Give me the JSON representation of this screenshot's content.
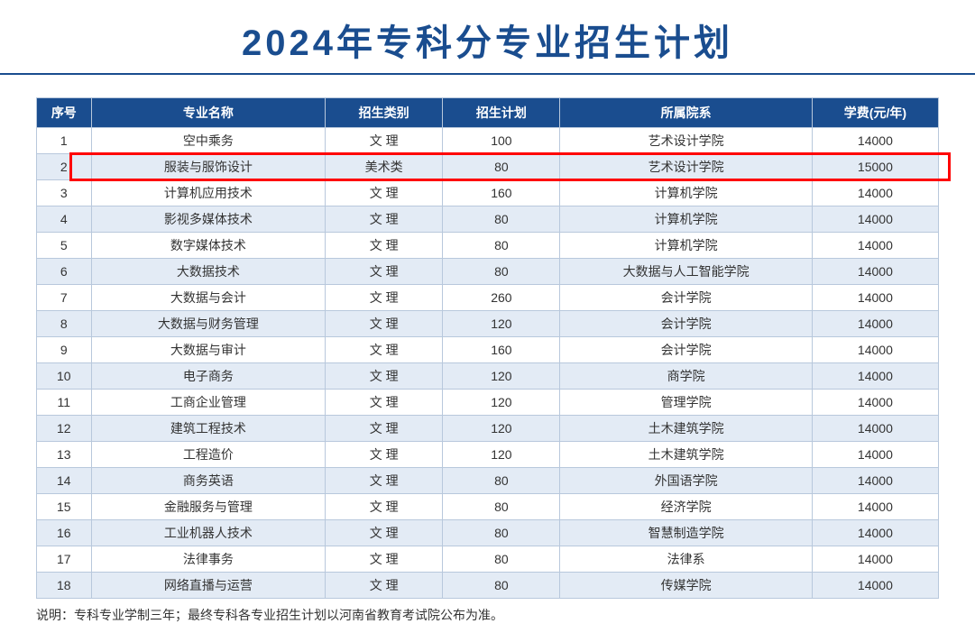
{
  "title": "2024年专科分专业招生计划",
  "columns": [
    "序号",
    "专业名称",
    "招生类别",
    "招生计划",
    "所属院系",
    "学费(元/年)"
  ],
  "rows": [
    {
      "seq": "1",
      "name": "空中乘务",
      "type": "文 理",
      "plan": "100",
      "dept": "艺术设计学院",
      "fee": "14000",
      "highlighted": false
    },
    {
      "seq": "2",
      "name": "服装与服饰设计",
      "type": "美术类",
      "plan": "80",
      "dept": "艺术设计学院",
      "fee": "15000",
      "highlighted": true
    },
    {
      "seq": "3",
      "name": "计算机应用技术",
      "type": "文 理",
      "plan": "160",
      "dept": "计算机学院",
      "fee": "14000",
      "highlighted": false
    },
    {
      "seq": "4",
      "name": "影视多媒体技术",
      "type": "文 理",
      "plan": "80",
      "dept": "计算机学院",
      "fee": "14000",
      "highlighted": false
    },
    {
      "seq": "5",
      "name": "数字媒体技术",
      "type": "文 理",
      "plan": "80",
      "dept": "计算机学院",
      "fee": "14000",
      "highlighted": false
    },
    {
      "seq": "6",
      "name": "大数据技术",
      "type": "文 理",
      "plan": "80",
      "dept": "大数据与人工智能学院",
      "fee": "14000",
      "highlighted": false
    },
    {
      "seq": "7",
      "name": "大数据与会计",
      "type": "文 理",
      "plan": "260",
      "dept": "会计学院",
      "fee": "14000",
      "highlighted": false
    },
    {
      "seq": "8",
      "name": "大数据与财务管理",
      "type": "文 理",
      "plan": "120",
      "dept": "会计学院",
      "fee": "14000",
      "highlighted": false
    },
    {
      "seq": "9",
      "name": "大数据与审计",
      "type": "文 理",
      "plan": "160",
      "dept": "会计学院",
      "fee": "14000",
      "highlighted": false
    },
    {
      "seq": "10",
      "name": "电子商务",
      "type": "文 理",
      "plan": "120",
      "dept": "商学院",
      "fee": "14000",
      "highlighted": false
    },
    {
      "seq": "11",
      "name": "工商企业管理",
      "type": "文 理",
      "plan": "120",
      "dept": "管理学院",
      "fee": "14000",
      "highlighted": false
    },
    {
      "seq": "12",
      "name": "建筑工程技术",
      "type": "文 理",
      "plan": "120",
      "dept": "土木建筑学院",
      "fee": "14000",
      "highlighted": false
    },
    {
      "seq": "13",
      "name": "工程造价",
      "type": "文 理",
      "plan": "120",
      "dept": "土木建筑学院",
      "fee": "14000",
      "highlighted": false
    },
    {
      "seq": "14",
      "name": "商务英语",
      "type": "文 理",
      "plan": "80",
      "dept": "外国语学院",
      "fee": "14000",
      "highlighted": false
    },
    {
      "seq": "15",
      "name": "金融服务与管理",
      "type": "文 理",
      "plan": "80",
      "dept": "经济学院",
      "fee": "14000",
      "highlighted": false
    },
    {
      "seq": "16",
      "name": "工业机器人技术",
      "type": "文 理",
      "plan": "80",
      "dept": "智慧制造学院",
      "fee": "14000",
      "highlighted": false
    },
    {
      "seq": "17",
      "name": "法律事务",
      "type": "文 理",
      "plan": "80",
      "dept": "法律系",
      "fee": "14000",
      "highlighted": false
    },
    {
      "seq": "18",
      "name": "网络直播与运营",
      "type": "文 理",
      "plan": "80",
      "dept": "传媒学院",
      "fee": "14000",
      "highlighted": false
    }
  ],
  "footnote": "说明：专科专业学制三年；最终专科各专业招生计划以河南省教育考试院公布为准。",
  "colors": {
    "title_color": "#1a4d8f",
    "header_bg": "#1a4d8f",
    "header_text": "#ffffff",
    "border": "#b8c8dc",
    "alt_row_bg": "#e3ebf5",
    "highlight_border": "#ff0000",
    "text": "#333333"
  }
}
